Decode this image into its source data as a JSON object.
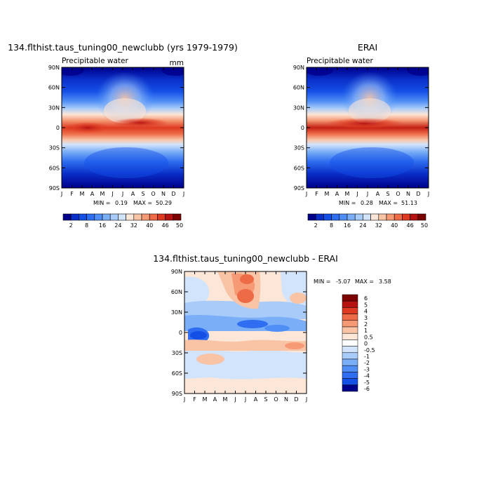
{
  "chart_data": [
    {
      "type": "heatmap",
      "id": "model",
      "title": "134.flthist.taus_tuning00_newclubb (yrs 1979-1979)",
      "subtitle": "Precipitable water",
      "units": "mm",
      "x_ticks": [
        "J",
        "F",
        "M",
        "A",
        "M",
        "J",
        "J",
        "A",
        "S",
        "O",
        "N",
        "D",
        "J"
      ],
      "y_ticks": [
        "90N",
        "60N",
        "30N",
        "0",
        "30S",
        "60S",
        "90S"
      ],
      "min_label": "MIN =",
      "min_value": "0.19",
      "max_label": "MAX =",
      "max_value": "50.29",
      "colorbar_ticks": [
        "2",
        "8",
        "16",
        "24",
        "32",
        "40",
        "46",
        "50"
      ]
    },
    {
      "type": "heatmap",
      "id": "obs",
      "title": "ERAI",
      "subtitle": "Precipitable water",
      "units": "",
      "x_ticks": [
        "J",
        "F",
        "M",
        "A",
        "M",
        "J",
        "J",
        "A",
        "S",
        "O",
        "N",
        "D",
        "J"
      ],
      "y_ticks": [
        "90N",
        "60N",
        "30N",
        "0",
        "30S",
        "60S",
        "90S"
      ],
      "min_label": "MIN =",
      "min_value": "0.28",
      "max_label": "MAX =",
      "max_value": "51.13",
      "colorbar_ticks": [
        "2",
        "8",
        "16",
        "24",
        "32",
        "40",
        "46",
        "50"
      ]
    },
    {
      "type": "heatmap",
      "id": "diff",
      "title": "134.flthist.taus_tuning00_newclubb - ERAI",
      "x_ticks": [
        "J",
        "F",
        "M",
        "A",
        "M",
        "J",
        "J",
        "A",
        "S",
        "O",
        "N",
        "D",
        "J"
      ],
      "y_ticks": [
        "90N",
        "60N",
        "30N",
        "0",
        "30S",
        "60S",
        "90S"
      ],
      "min_label": "MIN =",
      "min_value": "-5.07",
      "max_label": "MAX =",
      "max_value": "3.58",
      "colorbar_ticks": [
        "6",
        "5",
        "4",
        "3",
        "2",
        "1",
        "0.5",
        "0",
        "-0.5",
        "-1",
        "-2",
        "-3",
        "-4",
        "-5",
        "-6"
      ]
    }
  ],
  "palettes": {
    "sequential": [
      "#00008b",
      "#0a2fc8",
      "#1450e6",
      "#2f6ef0",
      "#4f8ef5",
      "#7aaef7",
      "#a8cbf9",
      "#d2e4fb",
      "#fbe6d7",
      "#f9c4a6",
      "#f59a75",
      "#ee6b47",
      "#de3a22",
      "#b51212",
      "#7d0000"
    ],
    "diverging": [
      "#7d0000",
      "#b51212",
      "#de3a22",
      "#ee6b47",
      "#f59a75",
      "#f9c4a6",
      "#fbe6d7",
      "#ffffff",
      "#d2e4fb",
      "#a8cbf9",
      "#7aaef7",
      "#4f8ef5",
      "#2f6ef0",
      "#1450e6",
      "#00008b"
    ]
  }
}
